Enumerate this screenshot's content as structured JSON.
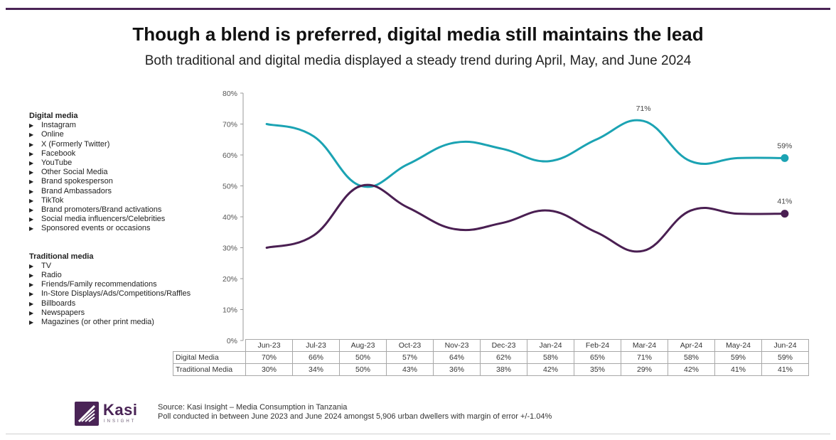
{
  "title": "Though a blend is preferred, digital media still maintains the lead",
  "subtitle": "Both traditional and digital media displayed a steady trend during April, May, and June 2024",
  "legend": {
    "digital": {
      "title": "Digital media",
      "items": [
        "Instagram",
        "Online",
        "X (Formerly Twitter)",
        "Facebook",
        "YouTube",
        "Other Social Media",
        "Brand spokesperson",
        "Brand Ambassadors",
        "TikTok",
        "Brand promoters/Brand activations",
        "Social media influencers/Celebrities",
        "Sponsored events or occasions"
      ]
    },
    "traditional": {
      "title": "Traditional media",
      "items": [
        "TV",
        "Radio",
        "Friends/Family recommendations",
        "In-Store Displays/Ads/Competitions/Raffles",
        "Billboards",
        "Newspapers",
        "Magazines (or other print media)"
      ]
    }
  },
  "chart_data": {
    "type": "line",
    "title": "Though a blend is preferred, digital media still maintains the lead",
    "categories": [
      "Jun-23",
      "Jul-23",
      "Aug-23",
      "Oct-23",
      "Nov-23",
      "Dec-23",
      "Jan-24",
      "Feb-24",
      "Mar-24",
      "Apr-24",
      "May-24",
      "Jun-24"
    ],
    "series": [
      {
        "name": "Digital Media",
        "color": "#1ba3b3",
        "values": [
          70,
          66,
          50,
          57,
          64,
          62,
          58,
          65,
          71,
          58,
          59,
          59
        ],
        "labeled_points": {
          "8": "71%",
          "11": "59%"
        }
      },
      {
        "name": "Traditional Media",
        "color": "#4a1f52",
        "values": [
          30,
          34,
          50,
          43,
          36,
          38,
          42,
          35,
          29,
          42,
          41,
          41
        ],
        "labeled_points": {
          "11": "41%"
        }
      }
    ],
    "ylim": [
      0,
      80
    ],
    "yticks": [
      "0%",
      "10%",
      "20%",
      "30%",
      "40%",
      "50%",
      "60%",
      "70%",
      "80%"
    ],
    "table": {
      "rows": [
        {
          "label": "Digital Media",
          "values": [
            "70%",
            "66%",
            "50%",
            "57%",
            "64%",
            "62%",
            "58%",
            "65%",
            "71%",
            "58%",
            "59%",
            "59%"
          ]
        },
        {
          "label": "Traditional Media",
          "values": [
            "30%",
            "34%",
            "50%",
            "43%",
            "36%",
            "38%",
            "42%",
            "35%",
            "29%",
            "42%",
            "41%",
            "41%"
          ]
        }
      ]
    }
  },
  "logo": {
    "word": "Kasi",
    "tagline": "INSIGHT",
    "color": "#4a2456"
  },
  "source": {
    "line1": "Source: Kasi Insight – Media Consumption in Tanzania",
    "line2": "Poll conducted  in between June 2023 and June 2024 amongst 5,906 urban dwellers with margin of error +/-1.04%"
  }
}
